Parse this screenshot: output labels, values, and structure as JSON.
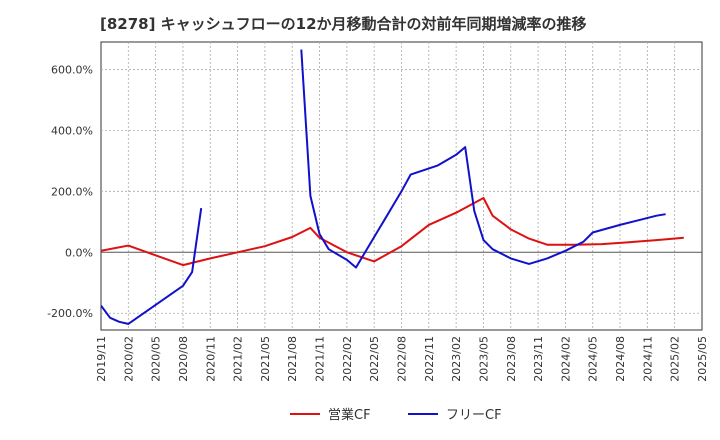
{
  "chart_data": {
    "type": "line",
    "title": "[8278]  キャッシュフローの12か月移動合計の対前年同期増減率の推移",
    "xlabel": "",
    "ylabel": "",
    "x_ticks": [
      "2019/11",
      "2020/02",
      "2020/05",
      "2020/08",
      "2020/11",
      "2021/02",
      "2021/05",
      "2021/08",
      "2021/11",
      "2022/02",
      "2022/05",
      "2022/08",
      "2022/11",
      "2023/02",
      "2023/05",
      "2023/08",
      "2023/11",
      "2024/02",
      "2024/05",
      "2024/08",
      "2024/11",
      "2025/02",
      "2025/05"
    ],
    "y_ticks": [
      600,
      400,
      200,
      0,
      -200
    ],
    "y_tick_labels": [
      "600.0%",
      "400.0%",
      "200.0%",
      "0.0%",
      "-200.0%"
    ],
    "ylim": [
      -255,
      690
    ],
    "grid": true,
    "legend_position": "bottom-center",
    "series": [
      {
        "name": "営業CF",
        "color": "#dd1111",
        "points": [
          [
            0,
            5
          ],
          [
            3,
            22
          ],
          [
            9,
            -42
          ],
          [
            12,
            -20
          ],
          [
            15,
            0
          ],
          [
            18,
            20
          ],
          [
            21,
            50
          ],
          [
            23,
            80
          ],
          [
            24,
            48
          ],
          [
            27,
            0
          ],
          [
            30,
            -30
          ],
          [
            33,
            20
          ],
          [
            36,
            90
          ],
          [
            39,
            130
          ],
          [
            42,
            178
          ],
          [
            43,
            120
          ],
          [
            45,
            75
          ],
          [
            47,
            45
          ],
          [
            49,
            25
          ],
          [
            52,
            25
          ],
          [
            55,
            27
          ],
          [
            58,
            33
          ],
          [
            61,
            40
          ],
          [
            64,
            48
          ]
        ]
      },
      {
        "name": "フリーCF",
        "color": "#1111cc",
        "segments": [
          [
            [
              0,
              -175
            ],
            [
              1,
              -215
            ],
            [
              2,
              -228
            ],
            [
              3,
              -235
            ],
            [
              9,
              -110
            ],
            [
              10,
              -65
            ],
            [
              11,
              145
            ]
          ],
          [
            [
              22,
              665
            ],
            [
              23,
              185
            ],
            [
              24,
              60
            ],
            [
              25,
              10
            ],
            [
              27,
              -25
            ],
            [
              28,
              -50
            ],
            [
              31,
              100
            ],
            [
              33,
              200
            ],
            [
              34,
              255
            ],
            [
              37,
              285
            ],
            [
              39,
              320
            ],
            [
              40,
              345
            ],
            [
              41,
              135
            ],
            [
              42,
              40
            ],
            [
              43,
              10
            ],
            [
              45,
              -20
            ],
            [
              47,
              -38
            ],
            [
              49,
              -20
            ],
            [
              51,
              5
            ],
            [
              53,
              35
            ],
            [
              54,
              65
            ],
            [
              57,
              90
            ],
            [
              61,
              120
            ],
            [
              62,
              125
            ]
          ]
        ]
      }
    ]
  }
}
